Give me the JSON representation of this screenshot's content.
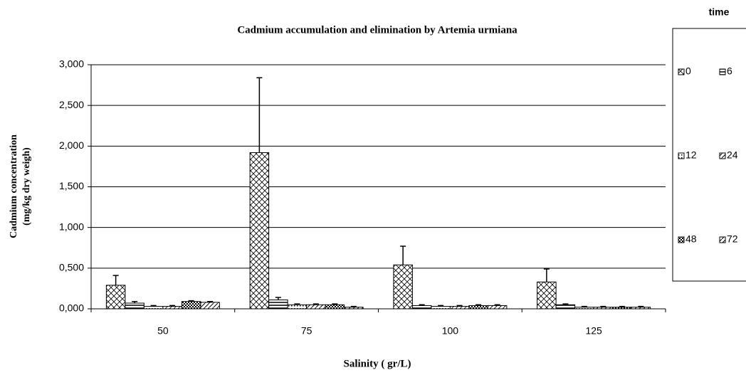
{
  "chart_data": {
    "type": "bar",
    "title": "Cadmium accumulation and elimination by Artemia urmiana",
    "xlabel": "Salinity ( gr/L)",
    "ylabel": [
      "Cadmium concentration",
      "(mg/kg  dry weigh)"
    ],
    "legend_title": "time",
    "legend": "right",
    "grid": true,
    "categories": [
      "50",
      "75",
      "100",
      "125"
    ],
    "ylim": [
      0,
      3
    ],
    "yticks": [
      {
        "value": 0,
        "label": "0,000"
      },
      {
        "value": 0.5,
        "label": "0,500"
      },
      {
        "value": 1,
        "label": "1,000"
      },
      {
        "value": 1.5,
        "label": "1,500"
      },
      {
        "value": 2,
        "label": "2,000"
      },
      {
        "value": 2.5,
        "label": "2,500"
      },
      {
        "value": 3,
        "label": "3,000"
      }
    ],
    "series": [
      {
        "name": "0",
        "color": "#000000",
        "pattern": "crosshatch",
        "values": [
          0.29,
          1.92,
          0.54,
          0.33
        ],
        "errors": [
          0.12,
          0.92,
          0.23,
          0.16
        ]
      },
      {
        "name": "6",
        "color": "#000000",
        "pattern": "horizontal",
        "values": [
          0.07,
          0.11,
          0.04,
          0.05
        ],
        "errors": [
          0.02,
          0.03,
          0.01,
          0.01
        ]
      },
      {
        "name": "12",
        "color": "#000000",
        "pattern": "dots",
        "values": [
          0.03,
          0.05,
          0.03,
          0.02
        ],
        "errors": [
          0.01,
          0.01,
          0.01,
          0.01
        ]
      },
      {
        "name": "24",
        "color": "#000000",
        "pattern": "diagonal",
        "values": [
          0.03,
          0.05,
          0.03,
          0.02
        ],
        "errors": [
          0.01,
          0.01,
          0.01,
          0.01
        ]
      },
      {
        "name": "48",
        "color": "#000000",
        "pattern": "checker",
        "values": [
          0.09,
          0.05,
          0.04,
          0.02
        ],
        "errors": [
          0.01,
          0.01,
          0.01,
          0.01
        ]
      },
      {
        "name": "72",
        "color": "#000000",
        "pattern": "diagonal",
        "values": [
          0.08,
          0.02,
          0.04,
          0.02
        ],
        "errors": [
          0.01,
          0.01,
          0.01,
          0.01
        ]
      }
    ]
  }
}
